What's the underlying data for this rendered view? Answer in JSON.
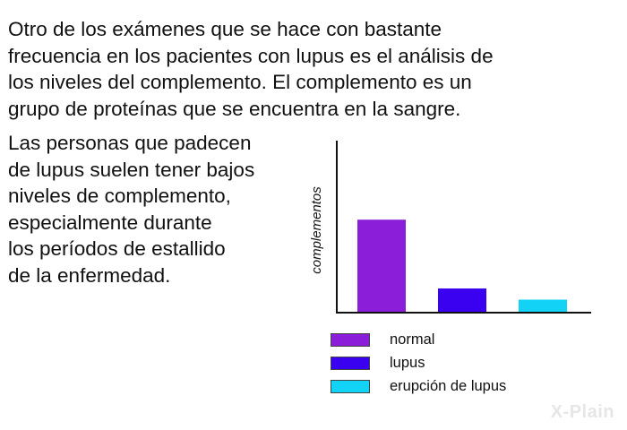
{
  "text": {
    "intro_lines": [
      "Otro de los exámenes que se hace con bastante",
      "frecuencia en los pacientes con lupus es el análisis de",
      "los niveles del complemento. El complemento es un",
      "grupo de proteínas que se encuentra en la sangre."
    ],
    "side_lines": [
      "Las personas que padecen",
      "de lupus suelen tener bajos",
      "niveles de complemento,",
      "especialmente durante",
      "los períodos de estallido",
      "de la enfermedad."
    ]
  },
  "logo": {
    "text": "X-Plain"
  },
  "chart_data": {
    "type": "bar",
    "title": "",
    "xlabel": "",
    "ylabel": "complementos",
    "categories": [
      "normal",
      "lupus",
      "erupción de lupus"
    ],
    "values": [
      100,
      26,
      14
    ],
    "colors": [
      "#8b1ed8",
      "#3a00f0",
      "#12d2f5"
    ],
    "ylim": [
      0,
      185
    ],
    "grid": false,
    "legend": "bottom"
  }
}
